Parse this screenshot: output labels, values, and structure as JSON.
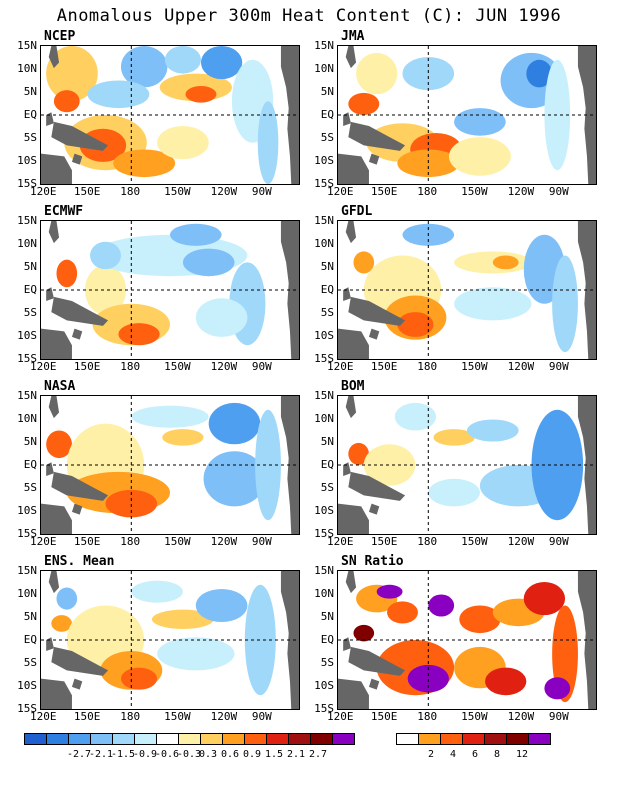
{
  "title": "Anomalous Upper 300m Heat Content (C): JUN 1996",
  "lat_labels": [
    "15N",
    "10N",
    "5N",
    "EQ",
    "5S",
    "10S",
    "15S"
  ],
  "lon_labels": [
    "120E",
    "150E",
    "180",
    "150W",
    "120W",
    "90W"
  ],
  "panels": [
    {
      "name": "NCEP"
    },
    {
      "name": "JMA"
    },
    {
      "name": "ECMWF"
    },
    {
      "name": "GFDL"
    },
    {
      "name": "NASA"
    },
    {
      "name": "BOM"
    },
    {
      "name": "ENS. Mean"
    },
    {
      "name": "SN Ratio"
    }
  ],
  "anomaly_colorbar": {
    "colors": [
      "#1f5fcf",
      "#2f7fe0",
      "#4f9ff0",
      "#7fbff8",
      "#a0d8fa",
      "#c8f0fc",
      "#ffffff",
      "#fff0a8",
      "#ffd060",
      "#ffa020",
      "#ff6010",
      "#e02010",
      "#a01010",
      "#800000",
      "#8a00c0"
    ],
    "labels": [
      "-2.7",
      "-2.1",
      "-1.5",
      "-0.9",
      "-0.6",
      "-0.3",
      "0.3",
      "0.6",
      "0.9",
      "1.5",
      "2.1",
      "2.7"
    ]
  },
  "sn_colorbar": {
    "colors": [
      "#ffffff",
      "#ffa020",
      "#ff6010",
      "#e02010",
      "#a01010",
      "#800000",
      "#8a00c0"
    ],
    "labels": [
      "2",
      "4",
      "6",
      "8",
      "12"
    ]
  },
  "colors": {
    "land": "#666666",
    "background": "#ffffff"
  }
}
